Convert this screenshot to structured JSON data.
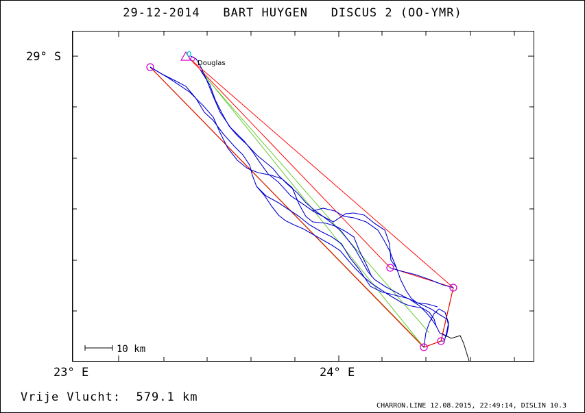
{
  "header": {
    "date": "29-12-2014",
    "pilot": "BART HUYGEN",
    "glider": "DISCUS 2 (OO-YMR)"
  },
  "axes": {
    "lat_label": "29° S",
    "lon_left_label": "23° E",
    "lon_mid_label": "24° E"
  },
  "map": {
    "start_label": "Douglas",
    "scale_label": "10 km",
    "colors": {
      "track": "#0000cc",
      "task_red": "#ff0000",
      "task_brown": "#a05000",
      "task_green": "#66cc33",
      "turnpoint": "#cc00cc",
      "start_marker": "#00cccc"
    }
  },
  "footer": {
    "distance_label": "Vrije Vlucht:",
    "distance_value": "579.1 km",
    "credits": "CHARRON.LINE 12.08.2015, 22:49:14, DISLIN 10.3"
  }
}
